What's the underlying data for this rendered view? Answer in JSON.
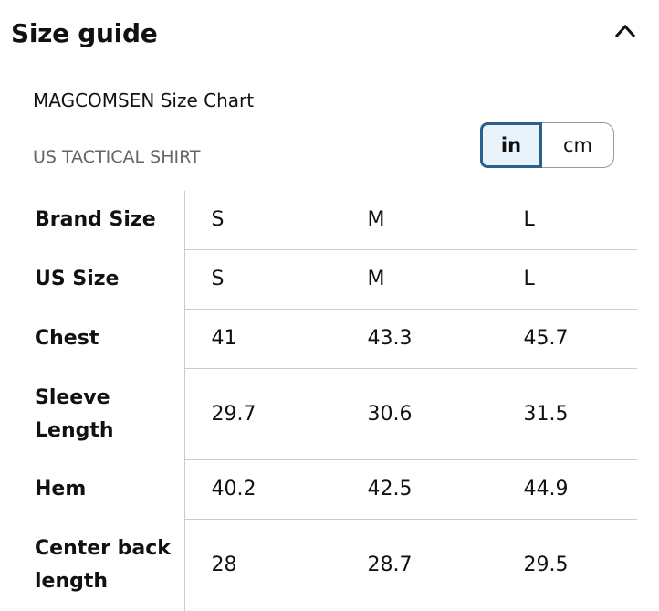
{
  "header": {
    "title": "Size guide"
  },
  "chart_title": "MAGCOMSEN Size Chart",
  "subtitle": "US TACTICAL SHIRT",
  "units": [
    "in",
    "cm"
  ],
  "table": {
    "rows": [
      [
        "Brand Size",
        "S",
        "M",
        "L"
      ],
      [
        "US Size",
        "S",
        "M",
        "L"
      ],
      [
        "Chest",
        41,
        43.3,
        45.7
      ],
      [
        "Sleeve Length",
        29.7,
        30.6,
        31.5
      ],
      [
        "Hem",
        40.2,
        42.5,
        44.9
      ],
      [
        "Center back length",
        28,
        28.7,
        29.5
      ]
    ]
  }
}
